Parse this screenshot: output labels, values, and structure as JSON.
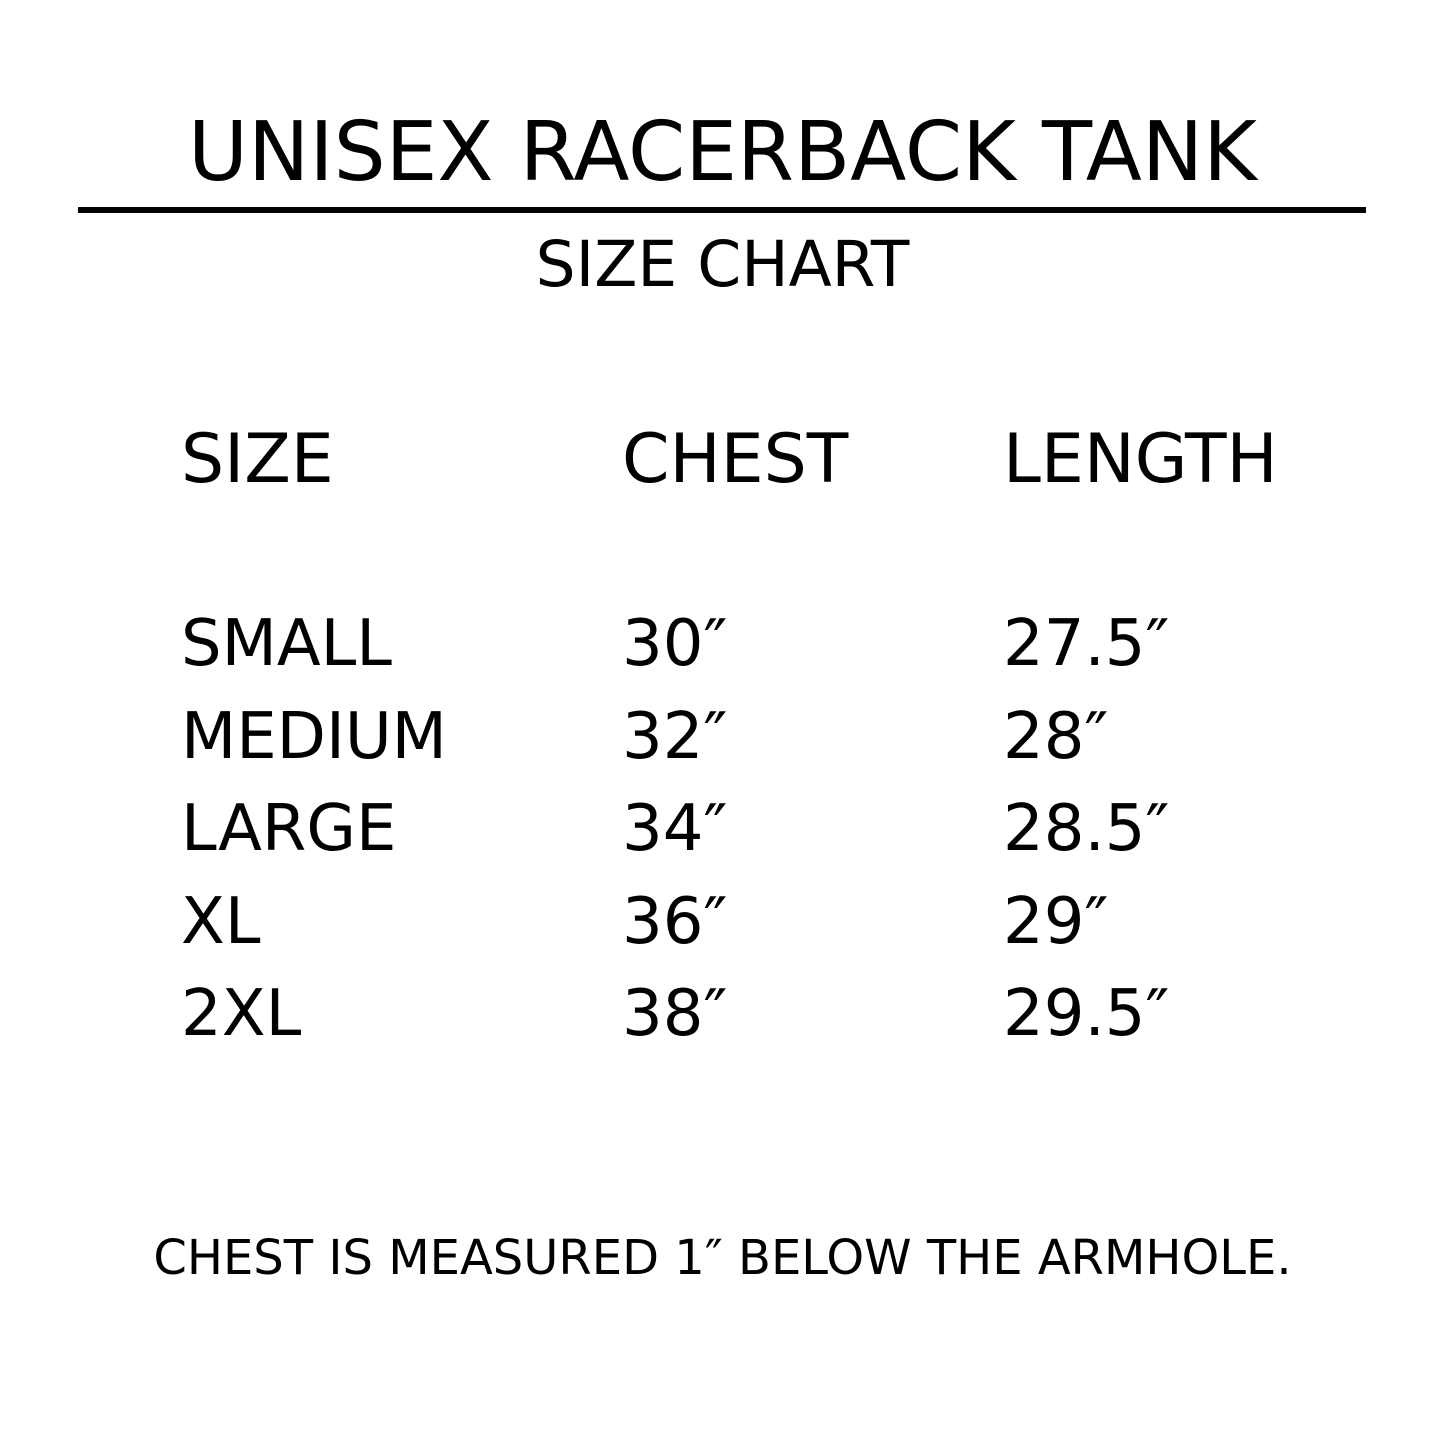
{
  "title": "UNISEX RACERBACK TANK",
  "subtitle": "SIZE CHART",
  "table": {
    "headers": [
      "SIZE",
      "CHEST",
      "LENGTH"
    ],
    "rows": [
      [
        "SMALL",
        "30″",
        "27.5″"
      ],
      [
        "MEDIUM",
        "32″",
        "28″"
      ],
      [
        "LARGE",
        "34″",
        "28.5″"
      ],
      [
        "XL",
        "36″",
        "29″"
      ],
      [
        "2XL",
        "38″",
        "29.5″"
      ]
    ]
  },
  "footnote": "CHEST IS MEASURED 1″ BELOW THE ARMHOLE."
}
